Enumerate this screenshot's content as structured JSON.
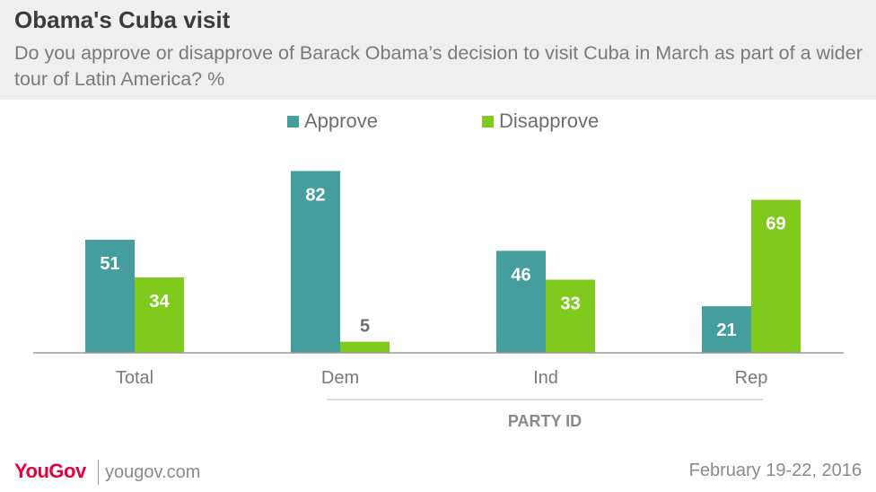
{
  "title": "Obama's Cuba visit",
  "subtitle": "Do you approve or disapprove of Barack Obama’s decision to visit Cuba in March as part of a wider tour of Latin America? %",
  "colors": {
    "approve": "#459e9e",
    "disapprove": "#7fca1d",
    "header_bg": "#efefef",
    "brand": "#e4003b"
  },
  "chart_data": {
    "type": "bar",
    "categories": [
      "Total",
      "Dem",
      "Ind",
      "Rep"
    ],
    "series": [
      {
        "name": "Approve",
        "values": [
          51,
          82,
          46,
          21
        ]
      },
      {
        "name": "Disapprove",
        "values": [
          34,
          5,
          33,
          69
        ]
      }
    ],
    "group_label": "PARTY ID",
    "ylim": [
      0,
      100
    ],
    "grid": false,
    "legend_position": "top-center"
  },
  "footer": {
    "logo": "YouGov",
    "url": "yougov.com",
    "date": "February 19-22, 2016"
  }
}
